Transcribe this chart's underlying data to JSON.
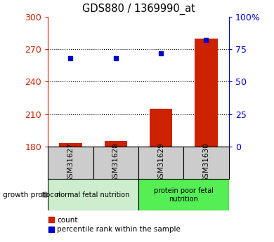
{
  "title": "GDS880 / 1369990_at",
  "samples": [
    "GSM31627",
    "GSM31628",
    "GSM31629",
    "GSM31630"
  ],
  "count_values": [
    183,
    185,
    215,
    280
  ],
  "percentile_values": [
    68,
    68,
    72,
    82
  ],
  "ylim_left": [
    180,
    300
  ],
  "ylim_right": [
    0,
    100
  ],
  "yticks_left": [
    180,
    210,
    240,
    270,
    300
  ],
  "yticks_right": [
    0,
    25,
    50,
    75,
    100
  ],
  "yticklabels_right": [
    "0",
    "25",
    "50",
    "75",
    "100%"
  ],
  "bar_color": "#cc2200",
  "dot_color": "#0000cc",
  "group1_label": "normal fetal nutrition",
  "group2_label": "protein poor fetal\nnutrition",
  "group1_bg": "#cceecc",
  "group2_bg": "#55ee55",
  "group_protocol_label": "growth protocol",
  "sample_bg": "#cccccc",
  "legend_count_label": "count",
  "legend_pct_label": "percentile rank within the sample",
  "left_tick_color": "#cc2200",
  "right_tick_color": "#0000cc",
  "bar_width": 0.5
}
